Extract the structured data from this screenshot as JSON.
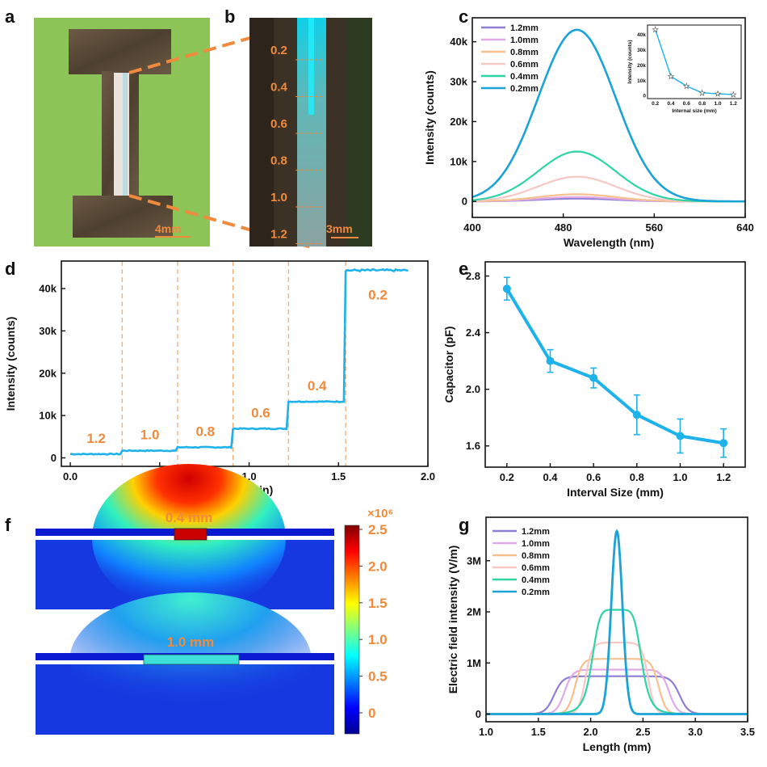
{
  "panels": {
    "a": {
      "label": "a",
      "scale": "4mm"
    },
    "b": {
      "label": "b",
      "scale": "3mm",
      "marks": [
        "0.2",
        "0.4",
        "0.6",
        "0.8",
        "1.0",
        "1.2"
      ]
    },
    "c": {
      "label": "c"
    },
    "d": {
      "label": "d",
      "annotations": [
        "1.2",
        "1.0",
        "0.8",
        "0.6",
        "0.4",
        "0.2"
      ]
    },
    "e": {
      "label": "e"
    },
    "f": {
      "label": "f",
      "gap_top": "0.4 mm",
      "gap_bottom": "1.0 mm",
      "colorbar_unit": "×10⁶",
      "colorbar_ticks": [
        "2.5",
        "2.0",
        "1.5",
        "1.0",
        "0.5",
        "0"
      ]
    },
    "g": {
      "label": "g"
    }
  },
  "colors": {
    "s12": "#8f7fd4",
    "s10": "#e3a9e6",
    "s08": "#f7c08f",
    "s06": "#f7c7c3",
    "s04": "#2ed4a4",
    "s02": "#1aa3d6",
    "accent": "#f08a3c",
    "bright_blue": "#1db2ea"
  },
  "chart_data": [
    {
      "id": "c",
      "type": "line",
      "xlabel": "Wavelength (nm)",
      "ylabel": "Intensity (counts)",
      "xlim": [
        400,
        640
      ],
      "ylim": [
        -4000,
        46000
      ],
      "xticks": [
        "400",
        "480",
        "560",
        "640"
      ],
      "yticks": [
        "0",
        "10k",
        "20k",
        "30k",
        "40k"
      ],
      "legend": "top-left",
      "series": [
        {
          "name": "1.2mm",
          "peak": 700
        },
        {
          "name": "1.0mm",
          "peak": 1100
        },
        {
          "name": "0.8mm",
          "peak": 1800
        },
        {
          "name": "0.6mm",
          "peak": 6200
        },
        {
          "name": "0.4mm",
          "peak": 12500
        },
        {
          "name": "0.2mm",
          "peak": 43000
        }
      ],
      "peak_wavelength": 492,
      "inset": {
        "type": "line",
        "xlabel": "Internal size (mm)",
        "ylabel": "Intensity (counts)",
        "x": [
          0.2,
          0.4,
          0.6,
          0.8,
          1.0,
          1.2
        ],
        "y": [
          43000,
          12500,
          6200,
          1800,
          1100,
          700
        ],
        "xlim": [
          0.1,
          1.3
        ],
        "ylim": [
          -2000,
          46000
        ],
        "xticks": [
          "0.2",
          "0.4",
          "0.6",
          "0.8",
          "1.0",
          "1.2"
        ],
        "yticks": [
          "0",
          "10k",
          "20k",
          "30k",
          "40k"
        ]
      }
    },
    {
      "id": "d",
      "type": "line",
      "xlabel": "Time (min)",
      "ylabel": "Intensity (counts)",
      "xlim": [
        -0.05,
        2.0
      ],
      "ylim": [
        -2000,
        46500
      ],
      "xticks": [
        "0.0",
        "0.5",
        "1.0",
        "1.5",
        "2.0"
      ],
      "yticks": [
        "0",
        "10k",
        "20k",
        "30k",
        "40k"
      ],
      "step_boundaries": [
        0.29,
        0.6,
        0.91,
        1.22,
        1.54
      ],
      "levels": [
        900,
        1700,
        2500,
        6900,
        13300,
        44300
      ],
      "x_end": 1.9
    },
    {
      "id": "e",
      "type": "line",
      "xlabel": "Interval Size (mm)",
      "ylabel": "Capacitor (pF)",
      "xlim": [
        0.1,
        1.3
      ],
      "ylim": [
        1.45,
        2.9
      ],
      "xticks": [
        "0.2",
        "0.4",
        "0.6",
        "0.8",
        "1.0",
        "1.2"
      ],
      "yticks": [
        "1.6",
        "2.0",
        "2.4",
        "2.8"
      ],
      "x": [
        0.2,
        0.4,
        0.6,
        0.8,
        1.0,
        1.2
      ],
      "y": [
        2.71,
        2.2,
        2.08,
        1.82,
        1.67,
        1.62
      ],
      "err": [
        0.08,
        0.08,
        0.07,
        0.14,
        0.12,
        0.1
      ]
    },
    {
      "id": "g",
      "type": "line",
      "xlabel": "Length (mm)",
      "ylabel": "Electric field intensity (V/m)",
      "xlim": [
        1.0,
        3.5
      ],
      "ylim": [
        -150000,
        3850000
      ],
      "xticks": [
        "1.0",
        "1.5",
        "2.0",
        "2.5",
        "3.0",
        "3.5"
      ],
      "yticks": [
        "0",
        "1M",
        "2M",
        "3M"
      ],
      "legend": "top-left",
      "center": 2.25,
      "series": [
        {
          "name": "1.2mm",
          "width": 1.2,
          "peak": 740000
        },
        {
          "name": "1.0mm",
          "width": 1.0,
          "peak": 870000
        },
        {
          "name": "0.8mm",
          "width": 0.8,
          "peak": 1080000
        },
        {
          "name": "0.6mm",
          "width": 0.6,
          "peak": 1400000
        },
        {
          "name": "0.4mm",
          "width": 0.4,
          "peak": 2040000
        },
        {
          "name": "0.2mm",
          "width": 0.2,
          "peak": 3580000
        }
      ]
    }
  ]
}
